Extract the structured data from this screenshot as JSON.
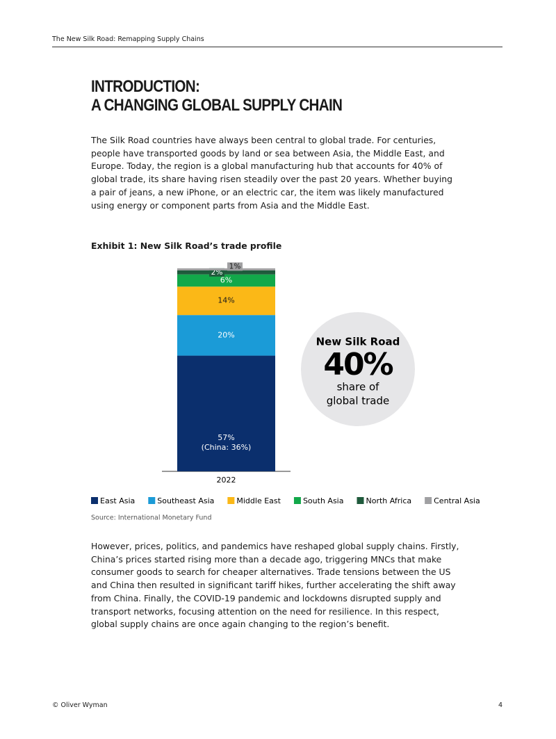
{
  "header": {
    "title": "The New Silk Road: Remapping Supply Chains"
  },
  "title_lines": [
    "INTRODUCTION:",
    "A CHANGING GLOBAL SUPPLY CHAIN"
  ],
  "paragraphs": [
    "The Silk Road countries have always been central to global trade. For centuries, people have transported goods by land or sea between Asia, the Middle East, and Europe. Today, the region is a global manufacturing hub that accounts for 40% of global trade, its share having risen steadily over the past 20 years. Whether buying a pair of jeans, a new iPhone, or an electric car, the item was likely manufactured using energy or component parts from Asia and the Middle East.",
    "However, prices, politics, and pandemics have reshaped global supply chains. Firstly, China’s prices started rising more than a decade ago, triggering MNCs that make consumer goods to search for cheaper alternatives. Trade tensions between the US and China then resulted in significant tariff hikes, further accelerating the shift away from China. Finally, the COVID-19 pandemic and lockdowns disrupted supply and transport networks, focusing attention on the need for resilience. In this respect, global supply chains are once again changing to the region’s benefit."
  ],
  "chart_data": {
    "type": "stacked-bar",
    "title": "Exhibit 1: New Silk Road’s trade profile",
    "categories": [
      "2022"
    ],
    "ylim": [
      0,
      100
    ],
    "series": [
      {
        "name": "East Asia",
        "color": "#0b2f6d",
        "values": [
          57
        ],
        "value_labels": [
          "57%"
        ]
      },
      {
        "name": "Southeast Asia",
        "color": "#1b9bd7",
        "values": [
          20
        ],
        "value_labels": [
          "20%"
        ]
      },
      {
        "name": "Middle East",
        "color": "#fbb817",
        "values": [
          14
        ],
        "value_labels": [
          "14%"
        ]
      },
      {
        "name": "South Asia",
        "color": "#12a84a",
        "values": [
          6
        ],
        "value_labels": [
          "6%"
        ]
      },
      {
        "name": "North Africa",
        "color": "#1f5a3c",
        "values": [
          2
        ],
        "value_labels": [
          "2%"
        ]
      },
      {
        "name": "Central Asia",
        "color": "#a0a0a2",
        "values": [
          1
        ],
        "value_labels": [
          "1%"
        ]
      }
    ],
    "annotation": "(China: 36%)",
    "callout": {
      "title": "New Silk Road",
      "value_label": "40%",
      "text_lines": [
        "share of",
        "global trade"
      ]
    },
    "source": "Source: International Monetary Fund"
  },
  "footer": {
    "copyright": "© Oliver Wyman",
    "page": "4"
  }
}
